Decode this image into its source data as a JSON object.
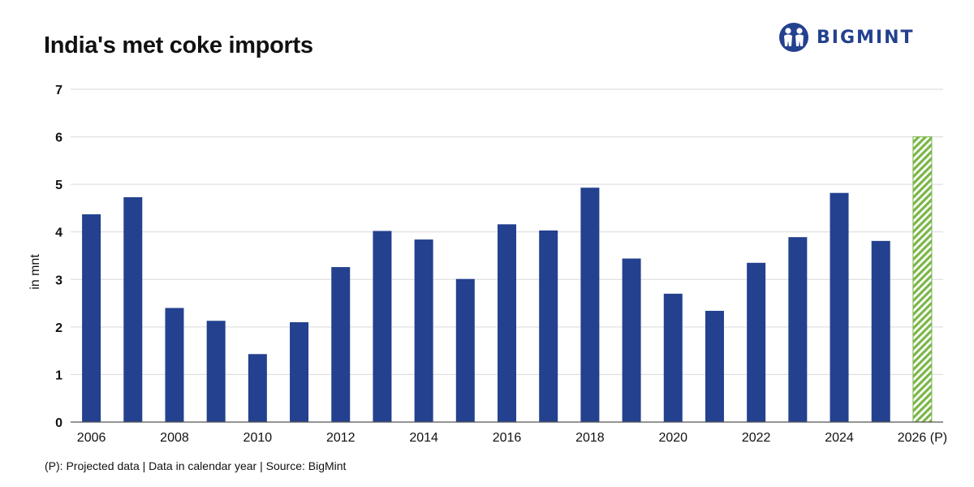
{
  "title": "India's met coke imports",
  "logo": {
    "text": "BIGMINT",
    "icon": "bigmint-people-icon"
  },
  "footnote": "(P): Projected data | Data in calendar year | Source: BigMint",
  "colors": {
    "bar": "#24418f",
    "projected": "#7ab648",
    "grid": "#d9d9d9",
    "axis": "#555555"
  },
  "chart_data": {
    "type": "bar",
    "title": "India's met coke imports",
    "xlabel": "",
    "ylabel": "in mnt",
    "ylim": [
      0,
      7
    ],
    "yticks": [
      0,
      1,
      2,
      3,
      4,
      5,
      6,
      7
    ],
    "grid": true,
    "categories": [
      "2006",
      "2007",
      "2008",
      "2009",
      "2010",
      "2011",
      "2012",
      "2013",
      "2014",
      "2015",
      "2016",
      "2017",
      "2018",
      "2019",
      "2020",
      "2021",
      "2022",
      "2023",
      "2024",
      "2025",
      "2026 (P)"
    ],
    "values": [
      4.37,
      4.73,
      2.4,
      2.13,
      1.43,
      2.1,
      3.26,
      4.02,
      3.84,
      3.01,
      4.16,
      4.03,
      4.93,
      3.44,
      2.7,
      2.34,
      3.35,
      3.89,
      4.82,
      3.81,
      6.0
    ],
    "shown_xtick_labels": [
      "2006",
      "2008",
      "2010",
      "2012",
      "2014",
      "2016",
      "2018",
      "2020",
      "2022",
      "2024",
      "2026 (P)"
    ],
    "projected": [
      "2026 (P)"
    ]
  }
}
